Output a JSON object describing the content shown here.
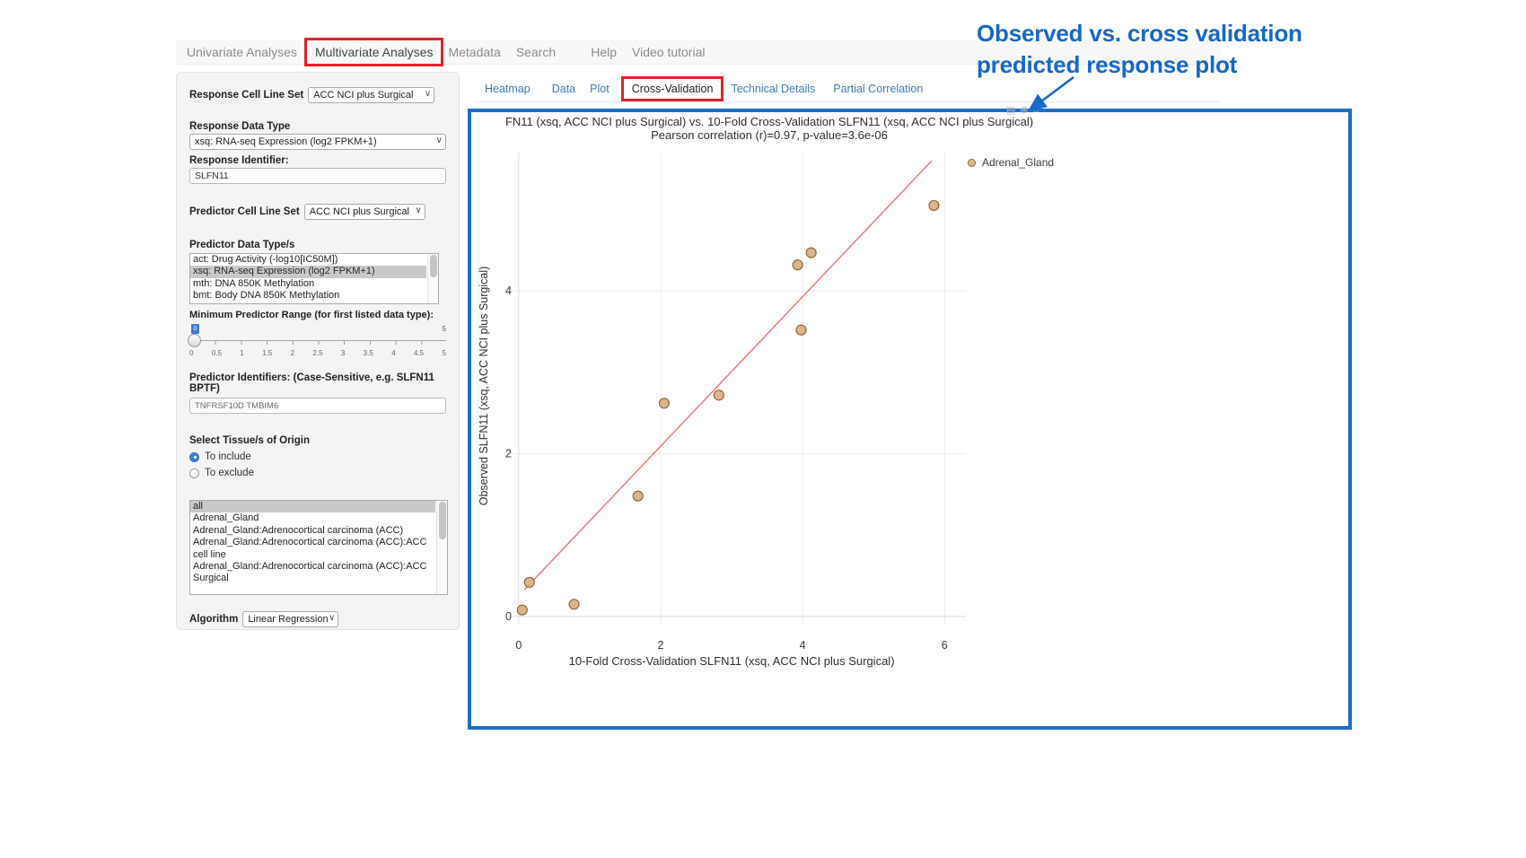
{
  "nav": {
    "items": [
      {
        "label": "Univariate Analyses",
        "active": false
      },
      {
        "label": "Multivariate Analyses",
        "active": true,
        "highlighted": true
      },
      {
        "label": "Metadata",
        "active": false
      },
      {
        "label": "Search",
        "active": false
      },
      {
        "label": "Help",
        "active": false
      },
      {
        "label": "Video tutorial",
        "active": false
      }
    ]
  },
  "sidebar": {
    "response_cell_line_set": {
      "label": "Response Cell Line Set",
      "value": "ACC NCI plus Surgical"
    },
    "response_data_type": {
      "label": "Response Data Type",
      "value": "xsq: RNA-seq Expression (log2 FPKM+1)"
    },
    "response_identifier": {
      "label": "Response Identifier:",
      "value": "SLFN11"
    },
    "predictor_cell_line_set": {
      "label": "Predictor Cell Line Set",
      "value": "ACC NCI plus Surgical"
    },
    "predictor_data_types": {
      "label": "Predictor Data Type/s",
      "options": [
        "act: Drug Activity (-log10[IC50M])",
        "xsq: RNA-seq Expression (log2 FPKM+1)",
        "mth: DNA 850K Methylation",
        "bmt: Body DNA 850K Methylation"
      ],
      "selected_index": 1
    },
    "min_predictor_range": {
      "label": "Minimum Predictor Range (for first listed data type):",
      "value": "0",
      "max_label": "5",
      "ticks": [
        "0",
        "0.5",
        "1",
        "1.5",
        "2",
        "2.5",
        "3",
        "3.5",
        "4",
        "4.5",
        "5"
      ]
    },
    "predictor_identifiers": {
      "label": "Predictor Identifiers: (Case-Sensitive, e.g. SLFN11 BPTF)",
      "value": "TNFRSF10D TMBIM6"
    },
    "tissue_origin": {
      "label": "Select Tissue/s of Origin",
      "options": [
        {
          "label": "To include",
          "selected": true
        },
        {
          "label": "To exclude",
          "selected": false
        }
      ]
    },
    "tissue_list": {
      "options": [
        "all",
        "Adrenal_Gland",
        "Adrenal_Gland:Adrenocortical carcinoma (ACC)",
        "Adrenal_Gland:Adrenocortical carcinoma (ACC):ACC cell line",
        "Adrenal_Gland:Adrenocortical carcinoma (ACC):ACC Surgical"
      ],
      "selected_index": 0
    },
    "algorithm": {
      "label": "Algorithm",
      "value": "Linear Regression"
    }
  },
  "subtabs": [
    "Heatmap",
    "Data",
    "Plot",
    "Cross-Validation",
    "Technical Details",
    "Partial Correlation"
  ],
  "annotation": {
    "text": "Observed vs. cross validation predicted response plot"
  },
  "plot_toolbar": {
    "icons": [
      {
        "name": "camera-icon",
        "glyph": "▤"
      },
      {
        "name": "zoom-icon",
        "glyph": "⊕"
      },
      {
        "name": "home-icon",
        "glyph": "⌂"
      }
    ]
  },
  "colors": {
    "highlight_red": "#e3232a",
    "plot_border_blue": "#1b6fc4",
    "link_blue": "#3f7bbf",
    "annotation_blue": "#1668c9",
    "marker_fill": "#ddb488",
    "marker_stroke": "#8a6a42",
    "fit_line": "#f0706e"
  },
  "chart_data": {
    "type": "scatter",
    "title": "FN11 (xsq, ACC NCI plus Surgical) vs. 10-Fold Cross-Validation SLFN11 (xsq, ACC NCI plus Surgical)",
    "subtitle": "Pearson correlation (r)=0.97, p-value=3.6e-06",
    "xlabel": "10-Fold Cross-Validation SLFN11 (xsq, ACC NCI plus Surgical)",
    "ylabel": "Observed SLFN11 (xsq, ACC NCI plus Surgical)",
    "legend": [
      {
        "label": "Adrenal_Gland",
        "marker_fill": "#ddb488",
        "marker_stroke": "#8a6a42"
      }
    ],
    "legend_position": "right-top",
    "grid": true,
    "xticks": [
      0,
      2,
      4,
      6
    ],
    "yticks": [
      0,
      2,
      4
    ],
    "xlim": [
      -0.15,
      6.3
    ],
    "ylim": [
      -0.1,
      5.7
    ],
    "points": [
      [
        0.05,
        0.08
      ],
      [
        0.15,
        0.42
      ],
      [
        0.78,
        0.15
      ],
      [
        1.68,
        1.48
      ],
      [
        2.05,
        2.62
      ],
      [
        2.82,
        2.72
      ],
      [
        3.98,
        3.52
      ],
      [
        3.93,
        4.32
      ],
      [
        4.12,
        4.47
      ],
      [
        5.85,
        5.05
      ]
    ],
    "fit_line": {
      "x1": 0.08,
      "y1": 0.33,
      "x2": 5.82,
      "y2": 5.6,
      "color": "#f0706e"
    }
  }
}
